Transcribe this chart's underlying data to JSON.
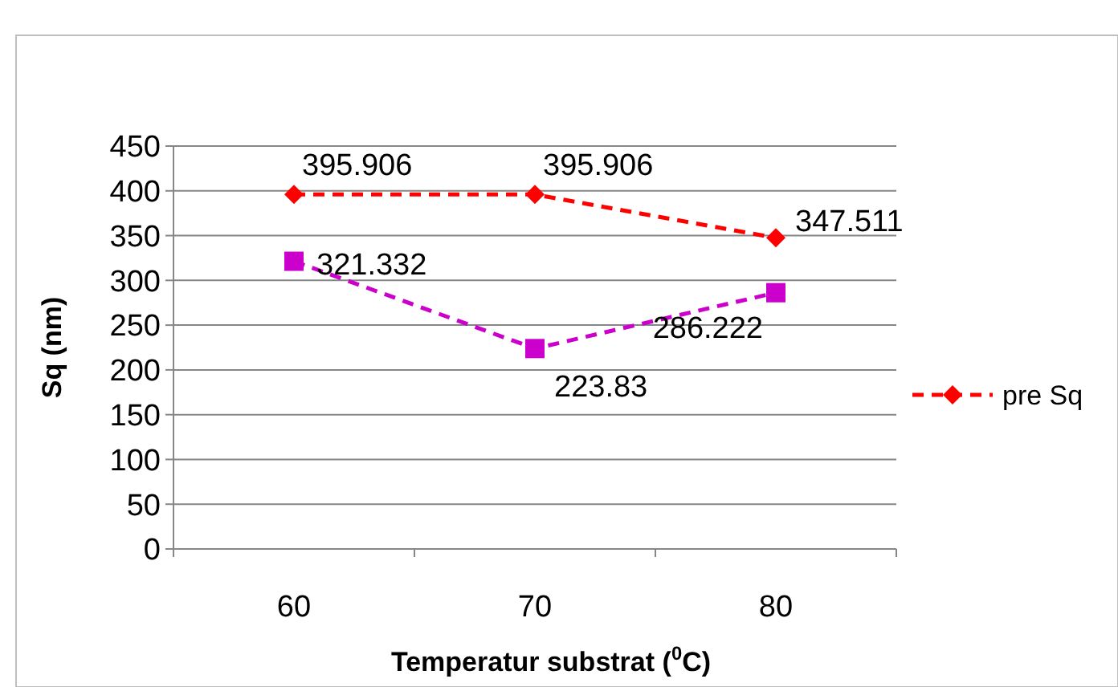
{
  "chart_data": {
    "type": "line",
    "xlabel": "Temperatur substrat ($^{0}$C)",
    "ylabel": "Sq (nm)",
    "categories": [
      "60",
      "70",
      "80"
    ],
    "series": [
      {
        "name": "pre Sq",
        "color": "#ff0000",
        "values": [
          395.906,
          395.906,
          347.511
        ],
        "marker": "diamond"
      },
      {
        "color": "#cc00cc",
        "values": [
          321.332,
          223.83,
          286.222
        ],
        "marker": "square"
      }
    ],
    "ylim": [
      0,
      450
    ],
    "yticks": [
      0,
      50,
      100,
      150,
      200,
      250,
      300,
      350,
      400,
      450
    ],
    "grid": "y",
    "line_style": "dashed",
    "data_labels": true,
    "legend": "right"
  }
}
